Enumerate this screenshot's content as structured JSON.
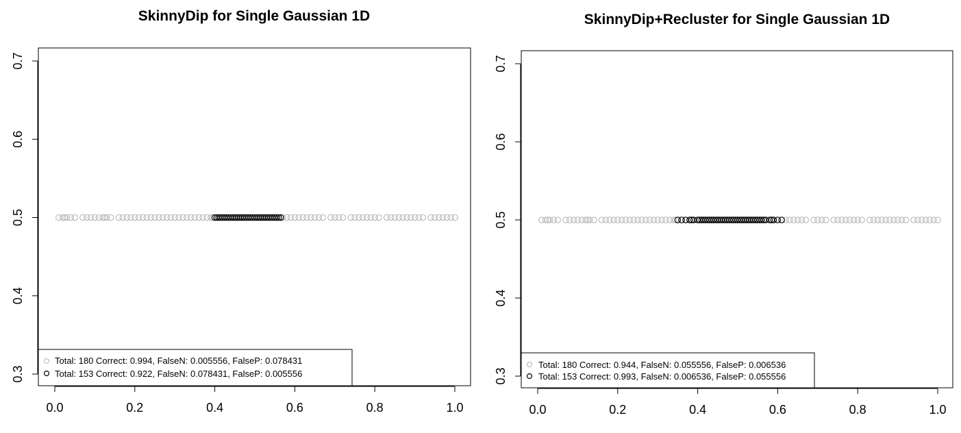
{
  "chart_data": [
    {
      "type": "scatter",
      "title": "SkinnyDip for Single Gaussian 1D",
      "xlabel": "",
      "ylabel": "",
      "xlim": [
        0.0,
        1.0
      ],
      "ylim": [
        0.3,
        0.7
      ],
      "x_ticks": [
        "0.0",
        "0.2",
        "0.4",
        "0.6",
        "0.8",
        "1.0"
      ],
      "y_ticks": [
        "0.3",
        "0.4",
        "0.5",
        "0.6",
        "0.7"
      ],
      "grid": false,
      "legend_position": "bottom-left",
      "colors": {
        "noise": "#bdbdbd",
        "cluster": "#000000"
      },
      "legend": [
        {
          "label": "Total: 180 Correct: 0.994, FalseN: 0.005556, FalseP: 0.078431",
          "color": "#bdbdbd"
        },
        {
          "label": "Total: 153 Correct: 0.922, FalseN: 0.078431, FalseP: 0.005556",
          "color": "#000000"
        }
      ],
      "series": [
        {
          "color": "#bdbdbd",
          "y": 0.5,
          "x": [
            0.01,
            0.02,
            0.025,
            0.03,
            0.04,
            0.05,
            0.07,
            0.08,
            0.09,
            0.1,
            0.11,
            0.12,
            0.125,
            0.13,
            0.14,
            0.16,
            0.17,
            0.18,
            0.19,
            0.2,
            0.21,
            0.22,
            0.23,
            0.24,
            0.25,
            0.26,
            0.27,
            0.28,
            0.29,
            0.3,
            0.31,
            0.32,
            0.33,
            0.34,
            0.35,
            0.36,
            0.37,
            0.38,
            0.39,
            0.395,
            0.57,
            0.58,
            0.59,
            0.6,
            0.61,
            0.62,
            0.63,
            0.64,
            0.65,
            0.66,
            0.67,
            0.69,
            0.7,
            0.71,
            0.72,
            0.74,
            0.75,
            0.76,
            0.77,
            0.78,
            0.79,
            0.8,
            0.81,
            0.83,
            0.84,
            0.85,
            0.86,
            0.87,
            0.88,
            0.89,
            0.9,
            0.91,
            0.92,
            0.94,
            0.95,
            0.96,
            0.97,
            0.98,
            0.99,
            1.0
          ]
        },
        {
          "color": "#000000",
          "y": 0.5,
          "x": [
            0.4,
            0.405,
            0.41,
            0.415,
            0.42,
            0.425,
            0.43,
            0.435,
            0.44,
            0.445,
            0.45,
            0.455,
            0.46,
            0.465,
            0.47,
            0.475,
            0.48,
            0.485,
            0.49,
            0.495,
            0.5,
            0.505,
            0.51,
            0.515,
            0.52,
            0.525,
            0.53,
            0.535,
            0.54,
            0.545,
            0.55,
            0.555,
            0.56,
            0.565
          ]
        }
      ]
    },
    {
      "type": "scatter",
      "title": "SkinnyDip+Recluster for Single Gaussian 1D",
      "xlabel": "",
      "ylabel": "",
      "xlim": [
        0.0,
        1.0
      ],
      "ylim": [
        0.3,
        0.7
      ],
      "x_ticks": [
        "0.0",
        "0.2",
        "0.4",
        "0.6",
        "0.8",
        "1.0"
      ],
      "y_ticks": [
        "0.3",
        "0.4",
        "0.5",
        "0.6",
        "0.7"
      ],
      "grid": false,
      "legend_position": "bottom-left",
      "colors": {
        "noise": "#bdbdbd",
        "cluster": "#000000"
      },
      "legend": [
        {
          "label": "Total: 180 Correct: 0.944, FalseN: 0.055556, FalseP: 0.006536",
          "color": "#bdbdbd"
        },
        {
          "label": "Total: 153 Correct: 0.993, FalseN: 0.006536, FalseP: 0.055556",
          "color": "#000000"
        }
      ],
      "series": [
        {
          "color": "#bdbdbd",
          "y": 0.5,
          "x": [
            0.01,
            0.02,
            0.025,
            0.03,
            0.04,
            0.05,
            0.07,
            0.08,
            0.09,
            0.1,
            0.11,
            0.12,
            0.125,
            0.13,
            0.14,
            0.16,
            0.17,
            0.18,
            0.19,
            0.2,
            0.21,
            0.22,
            0.23,
            0.24,
            0.25,
            0.26,
            0.27,
            0.28,
            0.29,
            0.3,
            0.31,
            0.32,
            0.33,
            0.34,
            0.345,
            0.62,
            0.63,
            0.64,
            0.65,
            0.66,
            0.67,
            0.69,
            0.7,
            0.71,
            0.72,
            0.74,
            0.75,
            0.76,
            0.77,
            0.78,
            0.79,
            0.8,
            0.81,
            0.83,
            0.84,
            0.85,
            0.86,
            0.87,
            0.88,
            0.89,
            0.9,
            0.91,
            0.92,
            0.94,
            0.95,
            0.96,
            0.97,
            0.98,
            0.99,
            1.0
          ]
        },
        {
          "color": "#000000",
          "y": 0.5,
          "x": [
            0.35,
            0.36,
            0.37,
            0.38,
            0.385,
            0.39,
            0.4,
            0.405,
            0.41,
            0.415,
            0.42,
            0.425,
            0.43,
            0.435,
            0.44,
            0.445,
            0.45,
            0.455,
            0.46,
            0.465,
            0.47,
            0.475,
            0.48,
            0.485,
            0.49,
            0.495,
            0.5,
            0.505,
            0.51,
            0.515,
            0.52,
            0.525,
            0.53,
            0.535,
            0.54,
            0.545,
            0.55,
            0.555,
            0.56,
            0.565,
            0.57,
            0.58,
            0.585,
            0.59,
            0.6,
            0.61
          ]
        }
      ]
    }
  ]
}
